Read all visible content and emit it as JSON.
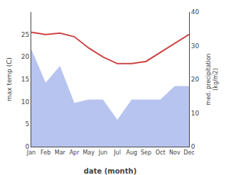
{
  "chart_data": {
    "type": "line",
    "categories": [
      "Jan",
      "Feb",
      "Mar",
      "Apr",
      "May",
      "Jun",
      "Jul",
      "Aug",
      "Sep",
      "Oct",
      "Nov",
      "Dec"
    ],
    "series": [
      {
        "type": "area",
        "color": "#b8c4f0",
        "axis": "y2",
        "values": [
          29,
          19,
          24,
          13,
          14,
          14,
          8,
          14,
          14,
          14,
          18,
          18
        ]
      },
      {
        "type": "line",
        "color": "#cc4444",
        "values": [
          25.5,
          25.0,
          25.3,
          24.5,
          22.0,
          20.0,
          18.5,
          18.5,
          19.0,
          21.0,
          23.0,
          25.0
        ]
      }
    ],
    "xlabel": "date (month)",
    "ylabel": "max temp (C)",
    "y2label": "med. precipitation\n(kg/m2)",
    "ylim": [
      0,
      30
    ],
    "yticks": [
      0,
      5,
      10,
      15,
      20,
      25
    ],
    "y2lim": [
      0,
      40
    ],
    "y2ticks": [
      0,
      10,
      20,
      30,
      40
    ],
    "grid": false
  }
}
